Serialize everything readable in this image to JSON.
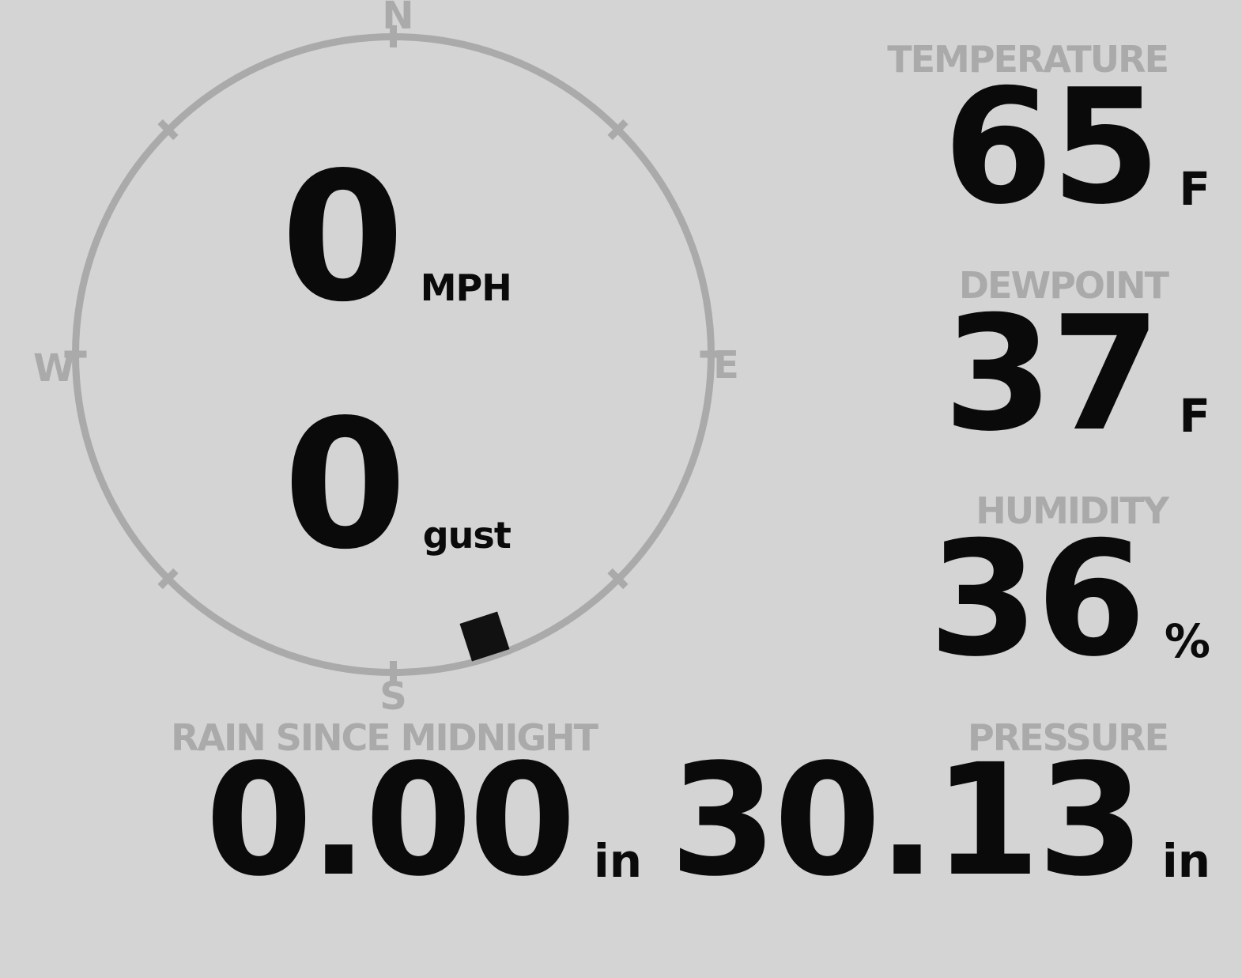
{
  "wind": {
    "speed": "0",
    "speed_unit": "MPH",
    "gust": "0",
    "gust_unit": "gust",
    "direction_deg": 162,
    "compass": {
      "north": "N",
      "east": "E",
      "south": "S",
      "west": "W"
    }
  },
  "metrics": {
    "temperature": {
      "label": "TEMPERATURE",
      "value": "65",
      "unit": "F"
    },
    "dewpoint": {
      "label": "DEWPOINT",
      "value": "37",
      "unit": "F"
    },
    "humidity": {
      "label": "HUMIDITY",
      "value": "36",
      "unit": "%"
    },
    "rain": {
      "label": "RAIN SINCE MIDNIGHT",
      "value": "0.00",
      "unit": "in"
    },
    "pressure": {
      "label": "PRESSURE",
      "value": "30.13",
      "unit": "in"
    }
  },
  "colors": {
    "background": "#d4d4d4",
    "muted_gray": "#aaaaaa",
    "value_ink": "#0a0a0a",
    "marker": "#111111"
  }
}
